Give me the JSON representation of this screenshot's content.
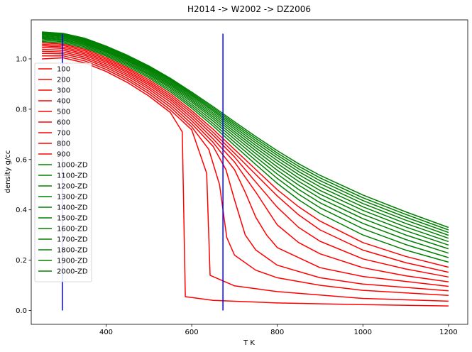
{
  "chart_data": {
    "type": "line",
    "title": "H2014 -> W2002 -> DZ2006",
    "xlabel": "T K",
    "ylabel": "density g/cc",
    "xlim": [
      225,
      1245
    ],
    "ylim": [
      -0.055,
      1.155
    ],
    "xticks": [
      400,
      600,
      800,
      1000,
      1200
    ],
    "yticks": [
      0.0,
      0.2,
      0.4,
      0.6,
      0.8,
      1.0
    ],
    "xtick_labels": [
      "400",
      "600",
      "800",
      "1000",
      "1200"
    ],
    "ytick_labels": [
      "0.0",
      "0.2",
      "0.4",
      "0.6",
      "0.8",
      "1.0"
    ],
    "vlines": [
      {
        "x": 298,
        "ymin": 0.0,
        "ymax": 1.1,
        "color": "#0000ff"
      },
      {
        "x": 673,
        "ymin": 0.0,
        "ymax": 1.1,
        "color": "#0000ff"
      }
    ],
    "legend_position": "center-left",
    "colors": {
      "low": "#ff0000",
      "high": "#008000",
      "vline": "#0000ff"
    },
    "series": [
      {
        "name": "100",
        "color": "#ff0000",
        "x": [
          250,
          300,
          350,
          400,
          450,
          500,
          550,
          578,
          585,
          650,
          800,
          1000,
          1200
        ],
        "y": [
          1.0,
          1.004,
          0.984,
          0.95,
          0.906,
          0.852,
          0.787,
          0.71,
          0.055,
          0.04,
          0.03,
          0.023,
          0.018
        ]
      },
      {
        "name": "200",
        "color": "#ff0000",
        "x": [
          250,
          300,
          350,
          400,
          450,
          500,
          550,
          600,
          635,
          643,
          700,
          800,
          1000,
          1200
        ],
        "y": [
          1.012,
          1.012,
          0.992,
          0.958,
          0.915,
          0.862,
          0.797,
          0.718,
          0.545,
          0.14,
          0.098,
          0.075,
          0.048,
          0.037
        ]
      },
      {
        "name": "300",
        "color": "#ff0000",
        "x": [
          250,
          300,
          350,
          400,
          450,
          500,
          550,
          600,
          640,
          665,
          682,
          700,
          750,
          800,
          900,
          1000,
          1200
        ],
        "y": [
          1.022,
          1.02,
          1.0,
          0.966,
          0.923,
          0.871,
          0.808,
          0.73,
          0.64,
          0.5,
          0.29,
          0.22,
          0.16,
          0.13,
          0.1,
          0.08,
          0.06
        ]
      },
      {
        "name": "400",
        "color": "#ff0000",
        "x": [
          250,
          300,
          350,
          400,
          450,
          500,
          550,
          600,
          650,
          680,
          700,
          725,
          750,
          800,
          900,
          1000,
          1200
        ],
        "y": [
          1.03,
          1.027,
          1.007,
          0.973,
          0.931,
          0.88,
          0.818,
          0.742,
          0.652,
          0.56,
          0.44,
          0.3,
          0.24,
          0.18,
          0.13,
          0.105,
          0.078
        ]
      },
      {
        "name": "500",
        "color": "#ff0000",
        "x": [
          250,
          300,
          350,
          400,
          450,
          500,
          550,
          600,
          650,
          700,
          725,
          750,
          775,
          800,
          900,
          1000,
          1200
        ],
        "y": [
          1.038,
          1.034,
          1.014,
          0.98,
          0.938,
          0.888,
          0.828,
          0.754,
          0.668,
          0.56,
          0.47,
          0.37,
          0.3,
          0.25,
          0.17,
          0.135,
          0.096
        ]
      },
      {
        "name": "600",
        "color": "#ff0000",
        "x": [
          250,
          300,
          350,
          400,
          450,
          500,
          550,
          600,
          650,
          700,
          750,
          800,
          850,
          900,
          1000,
          1100,
          1200
        ],
        "y": [
          1.046,
          1.041,
          1.02,
          0.987,
          0.945,
          0.896,
          0.837,
          0.765,
          0.682,
          0.59,
          0.47,
          0.34,
          0.27,
          0.225,
          0.17,
          0.138,
          0.114
        ]
      },
      {
        "name": "700",
        "color": "#ff0000",
        "x": [
          250,
          300,
          350,
          400,
          450,
          500,
          550,
          600,
          650,
          700,
          750,
          800,
          850,
          900,
          1000,
          1100,
          1200
        ],
        "y": [
          1.052,
          1.047,
          1.026,
          0.993,
          0.951,
          0.903,
          0.845,
          0.775,
          0.696,
          0.61,
          0.51,
          0.41,
          0.33,
          0.275,
          0.205,
          0.165,
          0.133
        ]
      },
      {
        "name": "800",
        "color": "#ff0000",
        "x": [
          250,
          300,
          350,
          400,
          450,
          500,
          550,
          600,
          650,
          700,
          750,
          800,
          850,
          900,
          1000,
          1100,
          1200
        ],
        "y": [
          1.058,
          1.053,
          1.032,
          0.999,
          0.958,
          0.91,
          0.853,
          0.785,
          0.708,
          0.625,
          0.54,
          0.455,
          0.38,
          0.32,
          0.24,
          0.19,
          0.152
        ]
      },
      {
        "name": "900",
        "color": "#ff0000",
        "x": [
          250,
          300,
          350,
          400,
          450,
          500,
          550,
          600,
          650,
          700,
          750,
          800,
          850,
          900,
          1000,
          1100,
          1200
        ],
        "y": [
          1.064,
          1.058,
          1.038,
          1.005,
          0.964,
          0.917,
          0.861,
          0.794,
          0.72,
          0.64,
          0.56,
          0.48,
          0.412,
          0.355,
          0.27,
          0.215,
          0.172
        ]
      },
      {
        "name": "1000-ZD",
        "color": "#008000",
        "x": [
          250,
          300,
          350,
          400,
          450,
          500,
          550,
          600,
          650,
          700,
          750,
          800,
          850,
          900,
          1000,
          1100,
          1200
        ],
        "y": [
          1.069,
          1.063,
          1.043,
          1.011,
          0.97,
          0.924,
          0.869,
          0.804,
          0.733,
          0.656,
          0.58,
          0.505,
          0.44,
          0.385,
          0.3,
          0.24,
          0.192
        ]
      },
      {
        "name": "1100-ZD",
        "color": "#008000",
        "x": [
          250,
          300,
          350,
          400,
          450,
          500,
          550,
          600,
          650,
          700,
          750,
          800,
          850,
          900,
          1000,
          1100,
          1200
        ],
        "y": [
          1.074,
          1.068,
          1.048,
          1.016,
          0.976,
          0.93,
          0.876,
          0.812,
          0.743,
          0.669,
          0.596,
          0.525,
          0.462,
          0.408,
          0.325,
          0.262,
          0.21
        ]
      },
      {
        "name": "1200-ZD",
        "color": "#008000",
        "x": [
          250,
          300,
          350,
          400,
          450,
          500,
          550,
          600,
          650,
          700,
          750,
          800,
          850,
          900,
          1000,
          1100,
          1200
        ],
        "y": [
          1.079,
          1.073,
          1.053,
          1.021,
          0.981,
          0.936,
          0.883,
          0.82,
          0.753,
          0.681,
          0.61,
          0.542,
          0.481,
          0.428,
          0.346,
          0.282,
          0.228
        ]
      },
      {
        "name": "1300-ZD",
        "color": "#008000",
        "x": [
          250,
          300,
          350,
          400,
          450,
          500,
          550,
          600,
          650,
          700,
          750,
          800,
          850,
          900,
          1000,
          1100,
          1200
        ],
        "y": [
          1.083,
          1.077,
          1.057,
          1.026,
          0.986,
          0.941,
          0.889,
          0.828,
          0.762,
          0.692,
          0.623,
          0.557,
          0.498,
          0.446,
          0.365,
          0.3,
          0.245
        ]
      },
      {
        "name": "1400-ZD",
        "color": "#008000",
        "x": [
          250,
          300,
          350,
          400,
          450,
          500,
          550,
          600,
          650,
          700,
          750,
          800,
          850,
          900,
          1000,
          1100,
          1200
        ],
        "y": [
          1.087,
          1.081,
          1.061,
          1.03,
          0.991,
          0.946,
          0.895,
          0.835,
          0.77,
          0.702,
          0.635,
          0.571,
          0.513,
          0.462,
          0.382,
          0.317,
          0.26
        ]
      },
      {
        "name": "1500-ZD",
        "color": "#008000",
        "x": [
          250,
          300,
          350,
          400,
          450,
          500,
          550,
          600,
          650,
          700,
          750,
          800,
          850,
          900,
          1000,
          1100,
          1200
        ],
        "y": [
          1.091,
          1.085,
          1.065,
          1.034,
          0.995,
          0.951,
          0.9,
          0.841,
          0.778,
          0.711,
          0.646,
          0.584,
          0.527,
          0.477,
          0.398,
          0.332,
          0.274
        ]
      },
      {
        "name": "1600-ZD",
        "color": "#008000",
        "x": [
          250,
          300,
          350,
          400,
          450,
          500,
          550,
          600,
          650,
          700,
          750,
          800,
          850,
          900,
          1000,
          1100,
          1200
        ],
        "y": [
          1.095,
          1.089,
          1.069,
          1.038,
          0.999,
          0.956,
          0.905,
          0.847,
          0.785,
          0.72,
          0.656,
          0.596,
          0.54,
          0.491,
          0.412,
          0.346,
          0.287
        ]
      },
      {
        "name": "1700-ZD",
        "color": "#008000",
        "x": [
          250,
          300,
          350,
          400,
          450,
          500,
          550,
          600,
          650,
          700,
          750,
          800,
          850,
          900,
          1000,
          1100,
          1200
        ],
        "y": [
          1.098,
          1.092,
          1.073,
          1.042,
          1.003,
          0.96,
          0.91,
          0.853,
          0.792,
          0.728,
          0.666,
          0.607,
          0.552,
          0.504,
          0.425,
          0.359,
          0.299
        ]
      },
      {
        "name": "1800-ZD",
        "color": "#008000",
        "x": [
          250,
          300,
          350,
          400,
          450,
          500,
          550,
          600,
          650,
          700,
          750,
          800,
          850,
          900,
          1000,
          1100,
          1200
        ],
        "y": [
          1.101,
          1.095,
          1.076,
          1.045,
          1.007,
          0.964,
          0.915,
          0.858,
          0.798,
          0.736,
          0.675,
          0.617,
          0.563,
          0.516,
          0.437,
          0.371,
          0.31
        ]
      },
      {
        "name": "1900-ZD",
        "color": "#008000",
        "x": [
          250,
          300,
          350,
          400,
          450,
          500,
          550,
          600,
          650,
          700,
          750,
          800,
          850,
          900,
          1000,
          1100,
          1200
        ],
        "y": [
          1.104,
          1.098,
          1.079,
          1.048,
          1.011,
          0.968,
          0.919,
          0.863,
          0.804,
          0.743,
          0.683,
          0.626,
          0.573,
          0.527,
          0.448,
          0.382,
          0.32
        ]
      },
      {
        "name": "2000-ZD",
        "color": "#008000",
        "x": [
          250,
          300,
          350,
          400,
          450,
          500,
          550,
          600,
          650,
          700,
          750,
          800,
          850,
          900,
          1000,
          1100,
          1200
        ],
        "y": [
          1.107,
          1.101,
          1.082,
          1.051,
          1.014,
          0.972,
          0.923,
          0.868,
          0.81,
          0.75,
          0.691,
          0.635,
          0.583,
          0.537,
          0.459,
          0.392,
          0.33
        ]
      }
    ]
  }
}
